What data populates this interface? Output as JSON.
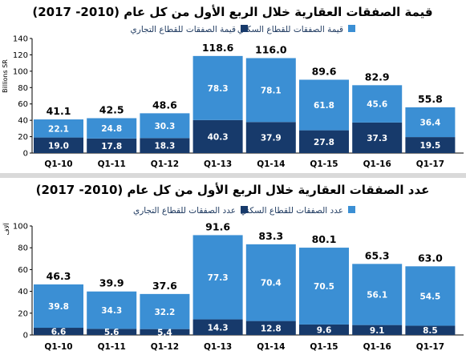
{
  "colors": {
    "residential": "#3b8fd4",
    "commercial": "#173a6b",
    "axis": "#000000"
  },
  "chart_data": [
    {
      "type": "bar",
      "stacked": true,
      "title": "قيمة الصفقات العقارية خلال الربع الأول من كل عام (2010- 2017)",
      "ylabel": "Billions SR",
      "ylim": [
        0,
        140
      ],
      "yticks": [
        "0",
        "20",
        "40",
        "60",
        "80",
        "100",
        "120",
        "140"
      ],
      "categories": [
        "Q1-10",
        "Q1-11",
        "Q1-12",
        "Q1-13",
        "Q1-14",
        "Q1-15",
        "Q1-16",
        "Q1-17"
      ],
      "series": [
        {
          "name": "قيمة الصفقات للقطاع التجاري",
          "values": [
            19.0,
            17.8,
            18.3,
            40.3,
            37.9,
            27.8,
            37.3,
            19.5
          ],
          "labels": [
            "19.0",
            "17.8",
            "18.3",
            "40.3",
            "37.9",
            "27.8",
            "37.3",
            "19.5"
          ]
        },
        {
          "name": "قيمة الصفقات للقطاع السكني",
          "values": [
            22.1,
            24.8,
            30.3,
            78.3,
            78.1,
            61.8,
            45.6,
            36.4
          ],
          "labels": [
            "22.1",
            "24.8",
            "30.3",
            "78.3",
            "78.1",
            "61.8",
            "45.6",
            "36.4"
          ]
        }
      ],
      "totals": [
        41.1,
        42.5,
        48.6,
        118.6,
        116.0,
        89.6,
        82.9,
        55.8
      ],
      "total_labels": [
        "41.1",
        "42.5",
        "48.6",
        "118.6",
        "116.0",
        "89.6",
        "82.9",
        "55.8"
      ],
      "legend": "top",
      "grid": false
    },
    {
      "type": "bar",
      "stacked": true,
      "title": "عدد الصفقات العقارية خلال الربع الأول من كل عام (2010- 2017)",
      "ylabel": "آلاف",
      "ylim": [
        0,
        100
      ],
      "yticks": [
        "0",
        "20",
        "40",
        "60",
        "80",
        "100"
      ],
      "categories": [
        "Q1-10",
        "Q1-11",
        "Q1-12",
        "Q1-13",
        "Q1-14",
        "Q1-15",
        "Q1-16",
        "Q1-17"
      ],
      "series": [
        {
          "name": "عدد الصفقات للقطاع التجاري",
          "values": [
            6.6,
            5.6,
            5.4,
            14.3,
            12.8,
            9.6,
            9.1,
            8.5
          ],
          "labels": [
            "6.6",
            "5.6",
            "5.4",
            "14.3",
            "12.8",
            "9.6",
            "9.1",
            "8.5"
          ]
        },
        {
          "name": "عدد الصفقات للقطاع السكني",
          "values": [
            39.8,
            34.3,
            32.2,
            77.3,
            70.4,
            70.5,
            56.1,
            54.5
          ],
          "labels": [
            "39.8",
            "34.3",
            "32.2",
            "77.3",
            "70.4",
            "70.5",
            "56.1",
            "54.5"
          ]
        }
      ],
      "totals": [
        46.3,
        39.9,
        37.6,
        91.6,
        83.3,
        80.1,
        65.3,
        63.0
      ],
      "total_labels": [
        "46.3",
        "39.9",
        "37.6",
        "91.6",
        "83.3",
        "80.1",
        "65.3",
        "63.0"
      ],
      "legend": "top",
      "grid": false
    }
  ]
}
